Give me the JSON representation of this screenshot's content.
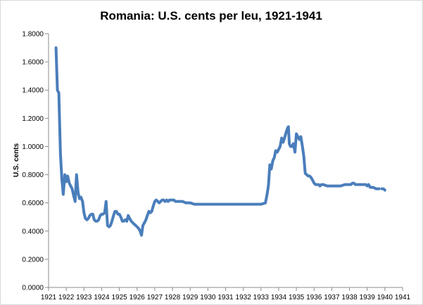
{
  "chart_data": {
    "type": "line",
    "title": "Romania: U.S. cents per leu, 1921-1941",
    "xlabel": "",
    "ylabel": "U.S. cents",
    "xlim": [
      1921,
      1941
    ],
    "ylim": [
      0,
      1.8
    ],
    "xticks": [
      "1921",
      "1922",
      "1923",
      "1924",
      "1925",
      "1926",
      "1927",
      "1928",
      "1929",
      "1930",
      "1931",
      "1932",
      "1933",
      "1934",
      "1935",
      "1936",
      "1937",
      "1938",
      "1939",
      "1940",
      "1941"
    ],
    "yticks": [
      "0.0000",
      "0.2000",
      "0.4000",
      "0.6000",
      "0.8000",
      "1.0000",
      "1.2000",
      "1.4000",
      "1.6000",
      "1.8000"
    ],
    "grid": false,
    "legend": "none",
    "line_color": "#4a7ebb",
    "series": [
      {
        "name": "",
        "segments": [
          [
            [
              1921.42,
              1.7
            ],
            [
              1921.5,
              1.4
            ],
            [
              1921.58,
              1.38
            ],
            [
              1921.67,
              0.95
            ],
            [
              1921.75,
              0.77
            ],
            [
              1921.83,
              0.66
            ],
            [
              1921.92,
              0.8
            ],
            [
              1922.0,
              0.75
            ],
            [
              1922.08,
              0.79
            ],
            [
              1922.17,
              0.74
            ],
            [
              1922.25,
              0.72
            ],
            [
              1922.33,
              0.7
            ],
            [
              1922.42,
              0.65
            ],
            [
              1922.5,
              0.61
            ],
            [
              1922.58,
              0.8
            ],
            [
              1922.67,
              0.67
            ],
            [
              1922.75,
              0.63
            ],
            [
              1922.83,
              0.64
            ],
            [
              1922.92,
              0.61
            ],
            [
              1923.0,
              0.53
            ],
            [
              1923.08,
              0.49
            ],
            [
              1923.17,
              0.48
            ],
            [
              1923.25,
              0.49
            ],
            [
              1923.33,
              0.51
            ],
            [
              1923.42,
              0.52
            ],
            [
              1923.5,
              0.52
            ],
            [
              1923.58,
              0.48
            ],
            [
              1923.67,
              0.47
            ],
            [
              1923.75,
              0.47
            ],
            [
              1923.83,
              0.48
            ],
            [
              1923.92,
              0.51
            ],
            [
              1924.0,
              0.52
            ],
            [
              1924.08,
              0.52
            ],
            [
              1924.17,
              0.53
            ],
            [
              1924.25,
              0.61
            ],
            [
              1924.33,
              0.44
            ],
            [
              1924.42,
              0.43
            ],
            [
              1924.5,
              0.44
            ],
            [
              1924.58,
              0.47
            ],
            [
              1924.67,
              0.51
            ],
            [
              1924.75,
              0.54
            ],
            [
              1924.83,
              0.54
            ],
            [
              1924.92,
              0.52
            ],
            [
              1925.0,
              0.52
            ],
            [
              1925.08,
              0.5
            ],
            [
              1925.17,
              0.47
            ],
            [
              1925.25,
              0.47
            ],
            [
              1925.33,
              0.48
            ],
            [
              1925.42,
              0.47
            ],
            [
              1925.5,
              0.51
            ],
            [
              1925.58,
              0.49
            ],
            [
              1925.67,
              0.47
            ],
            [
              1925.75,
              0.46
            ],
            [
              1925.83,
              0.45
            ],
            [
              1925.92,
              0.44
            ],
            [
              1926.0,
              0.43
            ],
            [
              1926.08,
              0.42
            ],
            [
              1926.17,
              0.4
            ],
            [
              1926.25,
              0.37
            ],
            [
              1926.33,
              0.44
            ],
            [
              1926.42,
              0.46
            ],
            [
              1926.5,
              0.48
            ],
            [
              1926.58,
              0.51
            ],
            [
              1926.67,
              0.54
            ],
            [
              1926.75,
              0.53
            ],
            [
              1926.83,
              0.54
            ],
            [
              1926.92,
              0.58
            ],
            [
              1927.0,
              0.61
            ],
            [
              1927.08,
              0.62
            ],
            [
              1927.17,
              0.61
            ],
            [
              1927.25,
              0.6
            ],
            [
              1927.33,
              0.61
            ],
            [
              1927.42,
              0.62
            ],
            [
              1927.5,
              0.62
            ],
            [
              1927.58,
              0.61
            ],
            [
              1927.67,
              0.62
            ],
            [
              1927.75,
              0.61
            ],
            [
              1927.83,
              0.62
            ],
            [
              1927.92,
              0.62
            ],
            [
              1928.0,
              0.62
            ],
            [
              1928.08,
              0.62
            ],
            [
              1928.17,
              0.61
            ],
            [
              1928.25,
              0.61
            ],
            [
              1928.42,
              0.61
            ],
            [
              1928.58,
              0.61
            ],
            [
              1928.75,
              0.6
            ],
            [
              1929.0,
              0.6
            ],
            [
              1929.25,
              0.59
            ],
            [
              1929.5,
              0.59
            ],
            [
              1929.75,
              0.59
            ],
            [
              1930.0,
              0.59
            ],
            [
              1930.25,
              0.59
            ],
            [
              1930.5,
              0.59
            ],
            [
              1930.75,
              0.59
            ],
            [
              1931.0,
              0.59
            ],
            [
              1931.25,
              0.59
            ],
            [
              1931.5,
              0.59
            ],
            [
              1931.75,
              0.59
            ],
            [
              1932.0,
              0.59
            ],
            [
              1932.25,
              0.59
            ],
            [
              1932.5,
              0.59
            ],
            [
              1932.75,
              0.59
            ],
            [
              1933.0,
              0.59
            ],
            [
              1933.25,
              0.6
            ],
            [
              1933.33,
              0.65
            ],
            [
              1933.42,
              0.72
            ],
            [
              1933.5,
              0.87
            ],
            [
              1933.58,
              0.84
            ],
            [
              1933.67,
              0.9
            ],
            [
              1933.75,
              0.92
            ],
            [
              1933.83,
              0.97
            ],
            [
              1933.92,
              0.96
            ],
            [
              1934.0,
              0.98
            ],
            [
              1934.08,
              1.0
            ],
            [
              1934.17,
              1.06
            ],
            [
              1934.25,
              1.03
            ],
            [
              1934.33,
              1.06
            ],
            [
              1934.42,
              1.1
            ],
            [
              1934.5,
              1.13
            ],
            [
              1934.55,
              1.14
            ],
            [
              1934.6,
              1.02
            ],
            [
              1934.67,
              1.0
            ],
            [
              1934.75,
              1.0
            ],
            [
              1934.83,
              1.02
            ],
            [
              1934.92,
              0.96
            ],
            [
              1935.0,
              1.09
            ],
            [
              1935.08,
              1.07
            ],
            [
              1935.17,
              1.05
            ],
            [
              1935.25,
              1.07
            ],
            [
              1935.33,
              1.01
            ],
            [
              1935.42,
              0.93
            ],
            [
              1935.5,
              0.81
            ],
            [
              1935.58,
              0.8
            ],
            [
              1935.67,
              0.79
            ],
            [
              1935.75,
              0.79
            ],
            [
              1935.83,
              0.78
            ],
            [
              1935.92,
              0.76
            ],
            [
              1936.0,
              0.74
            ],
            [
              1936.08,
              0.73
            ],
            [
              1936.17,
              0.73
            ],
            [
              1936.25,
              0.73
            ],
            [
              1936.33,
              0.72
            ],
            [
              1936.42,
              0.73
            ],
            [
              1936.5,
              0.73
            ],
            [
              1936.75,
              0.72
            ],
            [
              1937.0,
              0.72
            ],
            [
              1937.25,
              0.72
            ],
            [
              1937.5,
              0.72
            ],
            [
              1937.75,
              0.73
            ],
            [
              1938.0,
              0.73
            ],
            [
              1938.08,
              0.73
            ],
            [
              1938.17,
              0.74
            ],
            [
              1938.25,
              0.74
            ],
            [
              1938.33,
              0.73
            ],
            [
              1938.5,
              0.73
            ],
            [
              1938.75,
              0.73
            ],
            [
              1938.92,
              0.73
            ],
            [
              1939.0,
              0.72
            ],
            [
              1939.08,
              0.73
            ],
            [
              1939.17,
              0.71
            ],
            [
              1939.33,
              0.71
            ],
            [
              1939.5,
              0.7
            ],
            [
              1939.67,
              0.7
            ]
          ],
          [
            [
              1939.83,
              0.7
            ],
            [
              1939.92,
              0.7
            ],
            [
              1940.0,
              0.69
            ]
          ]
        ]
      }
    ]
  }
}
